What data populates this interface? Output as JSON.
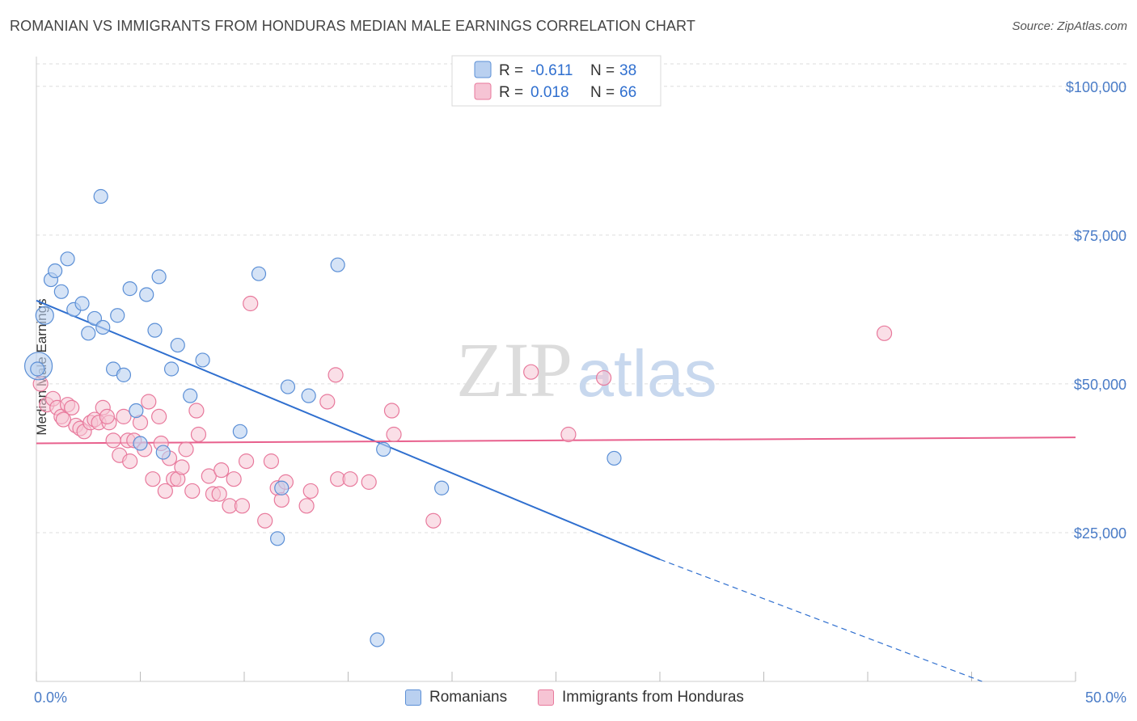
{
  "title": "ROMANIAN VS IMMIGRANTS FROM HONDURAS MEDIAN MALE EARNINGS CORRELATION CHART",
  "source": "Source: ZipAtlas.com",
  "watermark": {
    "zip": "ZIP",
    "atlas": "atlas"
  },
  "colors": {
    "blue": "#5b8fd6",
    "blue_fill": "#b9d0f0",
    "pink": "#e8799c",
    "pink_fill": "#f6c4d4",
    "blue_line": "#2f6fcf",
    "pink_line": "#e8608d",
    "axis_label": "#4a7cc7"
  },
  "legend": {
    "rows": [
      {
        "r_label": "R =",
        "r_value": "-0.611",
        "n_label": "N =",
        "n_value": "38"
      },
      {
        "r_label": "R =",
        "r_value": "0.018",
        "n_label": "N =",
        "n_value": "66"
      }
    ]
  },
  "chart_data": {
    "type": "scatter",
    "title": "ROMANIAN VS IMMIGRANTS FROM HONDURAS MEDIAN MALE EARNINGS CORRELATION CHART",
    "xlabel": "",
    "ylabel": "Median Male Earnings",
    "x_tick_labels": [
      "0.0%",
      "50.0%"
    ],
    "y_tick_labels": [
      "$100,000",
      "$75,000",
      "$50,000",
      "$25,000"
    ],
    "y_ticks": [
      100000,
      75000,
      50000,
      25000
    ],
    "xlim": [
      0,
      50
    ],
    "ylim": [
      0,
      105000
    ],
    "grid": true,
    "series": [
      {
        "name": "Romanians",
        "color": "#5b8fd6",
        "r": -0.611,
        "n": 38,
        "trend": {
          "x0": 0,
          "y0": 64000,
          "x1": 30,
          "y1": 20500,
          "dashed_to_x": 45.5,
          "dashed_to_y": 0
        },
        "points": [
          [
            0.1,
            53000
          ],
          [
            0.4,
            61500
          ],
          [
            0.7,
            67500
          ],
          [
            0.9,
            69000
          ],
          [
            1.2,
            65500
          ],
          [
            1.5,
            71000
          ],
          [
            1.8,
            62500
          ],
          [
            2.2,
            63500
          ],
          [
            2.5,
            58500
          ],
          [
            2.8,
            61000
          ],
          [
            3.2,
            59500
          ],
          [
            3.1,
            81500
          ],
          [
            3.7,
            52500
          ],
          [
            3.9,
            61500
          ],
          [
            4.2,
            51500
          ],
          [
            4.5,
            66000
          ],
          [
            4.8,
            45500
          ],
          [
            5.0,
            40000
          ],
          [
            5.3,
            65000
          ],
          [
            5.7,
            59000
          ],
          [
            5.9,
            68000
          ],
          [
            6.1,
            38500
          ],
          [
            6.5,
            52500
          ],
          [
            6.8,
            56500
          ],
          [
            7.4,
            48000
          ],
          [
            8.0,
            54000
          ],
          [
            9.8,
            42000
          ],
          [
            10.7,
            68500
          ],
          [
            11.6,
            24000
          ],
          [
            11.8,
            32500
          ],
          [
            12.1,
            49500
          ],
          [
            13.1,
            48000
          ],
          [
            14.5,
            70000
          ],
          [
            16.4,
            7000
          ],
          [
            16.7,
            39000
          ],
          [
            19.5,
            32500
          ],
          [
            27.8,
            37500
          ],
          [
            0.05,
            52500
          ]
        ]
      },
      {
        "name": "Immigrants from Honduras",
        "color": "#e8799c",
        "r": 0.018,
        "n": 66,
        "trend": {
          "x0": 0,
          "y0": 40000,
          "x1": 50,
          "y1": 41000
        },
        "points": [
          [
            0.2,
            50000
          ],
          [
            0.5,
            46500
          ],
          [
            0.8,
            47500
          ],
          [
            1.0,
            46000
          ],
          [
            1.2,
            44500
          ],
          [
            1.5,
            46500
          ],
          [
            1.7,
            46000
          ],
          [
            1.9,
            43000
          ],
          [
            2.1,
            42500
          ],
          [
            2.3,
            42000
          ],
          [
            2.6,
            43500
          ],
          [
            2.8,
            44000
          ],
          [
            3.0,
            43500
          ],
          [
            3.2,
            46000
          ],
          [
            3.5,
            43500
          ],
          [
            3.7,
            40500
          ],
          [
            4.0,
            38000
          ],
          [
            4.2,
            44500
          ],
          [
            4.4,
            40500
          ],
          [
            4.5,
            37000
          ],
          [
            4.7,
            40500
          ],
          [
            5.0,
            43500
          ],
          [
            5.2,
            39000
          ],
          [
            5.4,
            47000
          ],
          [
            5.6,
            34000
          ],
          [
            5.9,
            44500
          ],
          [
            6.0,
            40000
          ],
          [
            6.2,
            32000
          ],
          [
            6.4,
            37500
          ],
          [
            6.6,
            34000
          ],
          [
            6.8,
            34000
          ],
          [
            7.0,
            36000
          ],
          [
            7.2,
            39000
          ],
          [
            7.5,
            32000
          ],
          [
            7.7,
            45500
          ],
          [
            7.8,
            41500
          ],
          [
            8.3,
            34500
          ],
          [
            8.5,
            31500
          ],
          [
            8.9,
            35500
          ],
          [
            8.8,
            31500
          ],
          [
            9.3,
            29500
          ],
          [
            9.5,
            34000
          ],
          [
            9.9,
            29500
          ],
          [
            10.1,
            37000
          ],
          [
            10.3,
            63500
          ],
          [
            11.0,
            27000
          ],
          [
            11.3,
            37000
          ],
          [
            11.6,
            32500
          ],
          [
            11.8,
            30500
          ],
          [
            12.0,
            33500
          ],
          [
            13.0,
            29500
          ],
          [
            13.2,
            32000
          ],
          [
            14.0,
            47000
          ],
          [
            14.4,
            51500
          ],
          [
            14.5,
            34000
          ],
          [
            15.1,
            34000
          ],
          [
            16.0,
            33500
          ],
          [
            17.1,
            45500
          ],
          [
            17.2,
            41500
          ],
          [
            19.1,
            27000
          ],
          [
            23.8,
            52000
          ],
          [
            25.6,
            41500
          ],
          [
            27.3,
            51000
          ],
          [
            40.8,
            58500
          ],
          [
            1.3,
            44000
          ],
          [
            3.4,
            44500
          ]
        ]
      }
    ]
  },
  "bottom_legend": [
    {
      "label": "Romanians"
    },
    {
      "label": "Immigrants from Honduras"
    }
  ]
}
